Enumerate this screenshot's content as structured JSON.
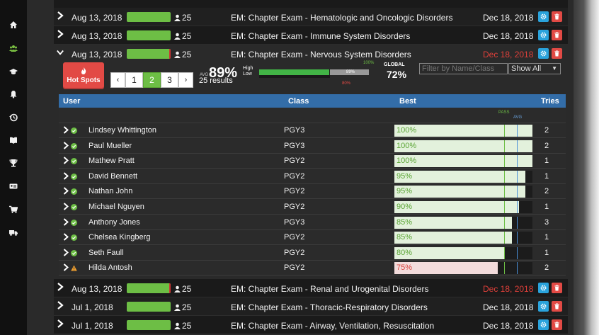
{
  "sidebar": {
    "items": [
      {
        "icon": "home-icon",
        "active": false
      },
      {
        "icon": "users-icon",
        "active": true
      },
      {
        "icon": "graduation-cap-icon",
        "active": false
      },
      {
        "icon": "bell-icon",
        "active": false
      },
      {
        "icon": "history-icon",
        "active": false
      },
      {
        "icon": "book-icon",
        "active": false
      },
      {
        "icon": "trophy-icon",
        "active": false
      },
      {
        "icon": "id-card-icon",
        "active": false
      },
      {
        "icon": "cart-icon",
        "active": false
      },
      {
        "icon": "truck-icon",
        "active": false
      }
    ]
  },
  "exams_above": [
    {
      "date": "Aug 13, 2018",
      "users": "25",
      "title": "EM: Chapter Exam - Hematologic and Oncologic Disorders",
      "due": "Dec 18, 2018",
      "overdue": false
    },
    {
      "date": "Aug 13, 2018",
      "users": "25",
      "title": "EM: Chapter Exam - Immune System Disorders",
      "due": "Dec 18, 2018",
      "overdue": false
    }
  ],
  "expanded_exam": {
    "date": "Aug 13, 2018",
    "users": "25",
    "title": "EM: Chapter Exam - Nervous System Disorders",
    "due": "Dec 18, 2018",
    "overdue": true
  },
  "panel": {
    "hotspots_label": "Hot Spots",
    "pager": {
      "prev": "‹",
      "pages": [
        "1",
        "2",
        "3"
      ],
      "active_page": "2",
      "next": "›"
    },
    "avg_label": "AVG",
    "avg_pct": "89%",
    "results": "25 results",
    "high_label": "High",
    "low_label": "Low",
    "range_top_label": "100%",
    "range_mid_label": "89%",
    "range_low_label": "80%",
    "range": {
      "high": 100,
      "avg": 89,
      "low": 80
    },
    "global_label": "GLOBAL",
    "global_value": "72%",
    "filter_placeholder": "Filter by Name/Class",
    "show_select": "Show All"
  },
  "table": {
    "headers": {
      "user": "User",
      "class": "Class",
      "best": "Best",
      "tries": "Tries"
    },
    "pass_label": "PASS",
    "avg_label": "AVG",
    "rows": [
      {
        "name": "Lindsey Whittington",
        "class": "PGY3",
        "best": "100%",
        "best_value": 100,
        "tries": "2",
        "status": "pass"
      },
      {
        "name": "Paul Mueller",
        "class": "PGY3",
        "best": "100%",
        "best_value": 100,
        "tries": "2",
        "status": "pass"
      },
      {
        "name": "Mathew Pratt",
        "class": "PGY2",
        "best": "100%",
        "best_value": 100,
        "tries": "1",
        "status": "pass"
      },
      {
        "name": "David Bennett",
        "class": "PGY2",
        "best": "95%",
        "best_value": 95,
        "tries": "1",
        "status": "pass"
      },
      {
        "name": "Nathan John",
        "class": "PGY2",
        "best": "95%",
        "best_value": 95,
        "tries": "2",
        "status": "pass"
      },
      {
        "name": "Michael Nguyen",
        "class": "PGY2",
        "best": "90%",
        "best_value": 90,
        "tries": "1",
        "status": "pass"
      },
      {
        "name": "Anthony Jones",
        "class": "PGY3",
        "best": "85%",
        "best_value": 85,
        "tries": "3",
        "status": "pass"
      },
      {
        "name": "Chelsea Kingberg",
        "class": "PGY2",
        "best": "85%",
        "best_value": 85,
        "tries": "1",
        "status": "pass"
      },
      {
        "name": "Seth Faull",
        "class": "PGY2",
        "best": "80%",
        "best_value": 80,
        "tries": "1",
        "status": "pass"
      },
      {
        "name": "Hilda Antosh",
        "class": "PGY2",
        "best": "75%",
        "best_value": 75,
        "tries": "2",
        "status": "warning"
      }
    ]
  },
  "exams_below": [
    {
      "date": "Aug 13, 2018",
      "users": "25",
      "title": "EM: Chapter Exam - Renal and Urogenital Disorders",
      "due": "Dec 18, 2018",
      "overdue": true
    },
    {
      "date": "Jul 1, 2018",
      "users": "25",
      "title": "EM: Chapter Exam - Thoracic-Respiratory Disorders",
      "due": "Dec 18, 2018",
      "overdue": false
    },
    {
      "date": "Jul 1, 2018",
      "users": "25",
      "title": "EM: Chapter Exam - Airway, Ventilation, Resuscitation",
      "due": "Dec 18, 2018",
      "overdue": false
    }
  ],
  "colors": {
    "green": "#6dbe45",
    "red": "#e24a45",
    "blue": "#2aa3dc",
    "header_blue": "#336da8",
    "warning": "#f0a030"
  }
}
